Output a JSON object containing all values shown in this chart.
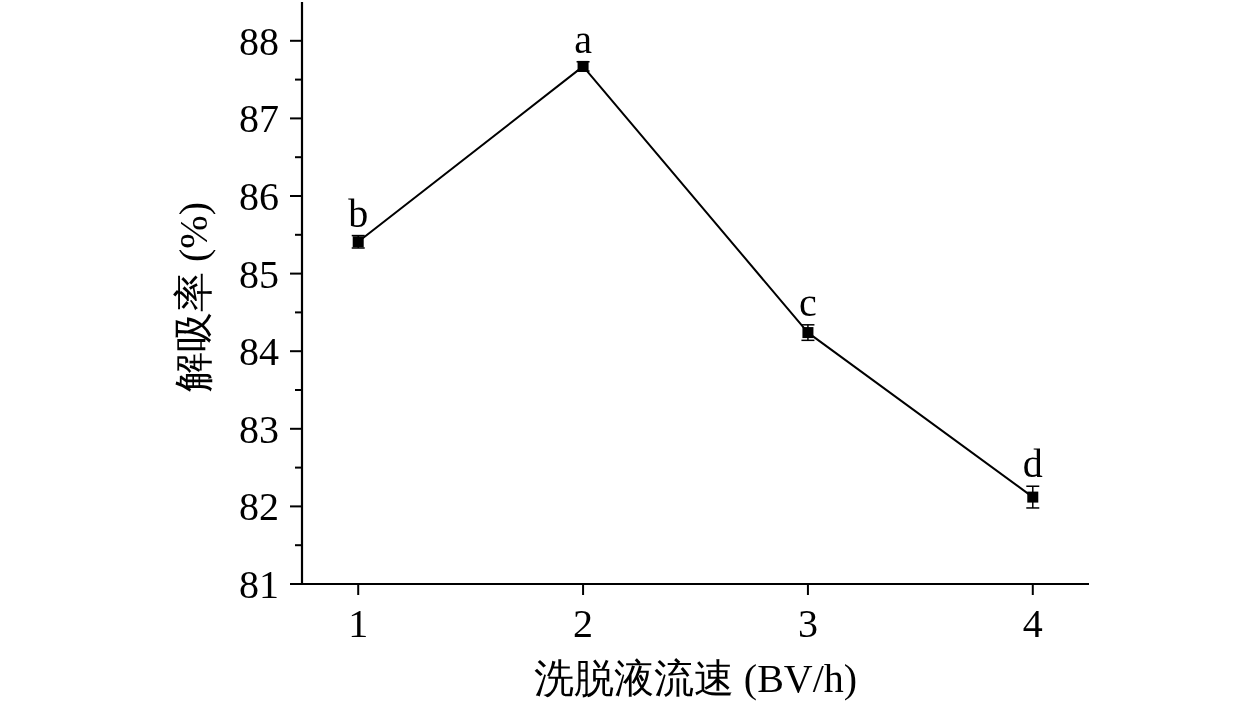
{
  "chart_data": {
    "type": "line",
    "xlabel": "洗脱液流速 (BV/h)",
    "ylabel": "解吸率 (%)",
    "x": [
      1,
      2,
      3,
      4
    ],
    "values": [
      85.41,
      87.67,
      84.24,
      82.12
    ],
    "errors": [
      0.08,
      0.06,
      0.1,
      0.14
    ],
    "color": "#000000",
    "marker": "square",
    "line_style": "solid",
    "xlim": [
      0.75,
      4.25
    ],
    "xticks": [
      1,
      2,
      3,
      4
    ],
    "ylim": [
      81,
      88.5
    ],
    "yticks": [
      81,
      {
        "value": 81.5,
        "label": null
      },
      82,
      {
        "value": 82.5,
        "label": null
      },
      83,
      {
        "value": 83.5,
        "label": null
      },
      84,
      {
        "value": 84.5,
        "label": null
      },
      85,
      {
        "value": 85.5,
        "label": null
      },
      86,
      {
        "value": 86.5,
        "label": null
      },
      87,
      {
        "value": 87.5,
        "label": null
      },
      88
    ],
    "annotations": [
      {
        "text": "b",
        "x": 1,
        "y": 85.41
      },
      {
        "text": "a",
        "x": 2,
        "y": 87.67
      },
      {
        "text": "c",
        "x": 3,
        "y": 84.24
      },
      {
        "text": "d",
        "x": 4,
        "y": 82.12
      }
    ]
  }
}
